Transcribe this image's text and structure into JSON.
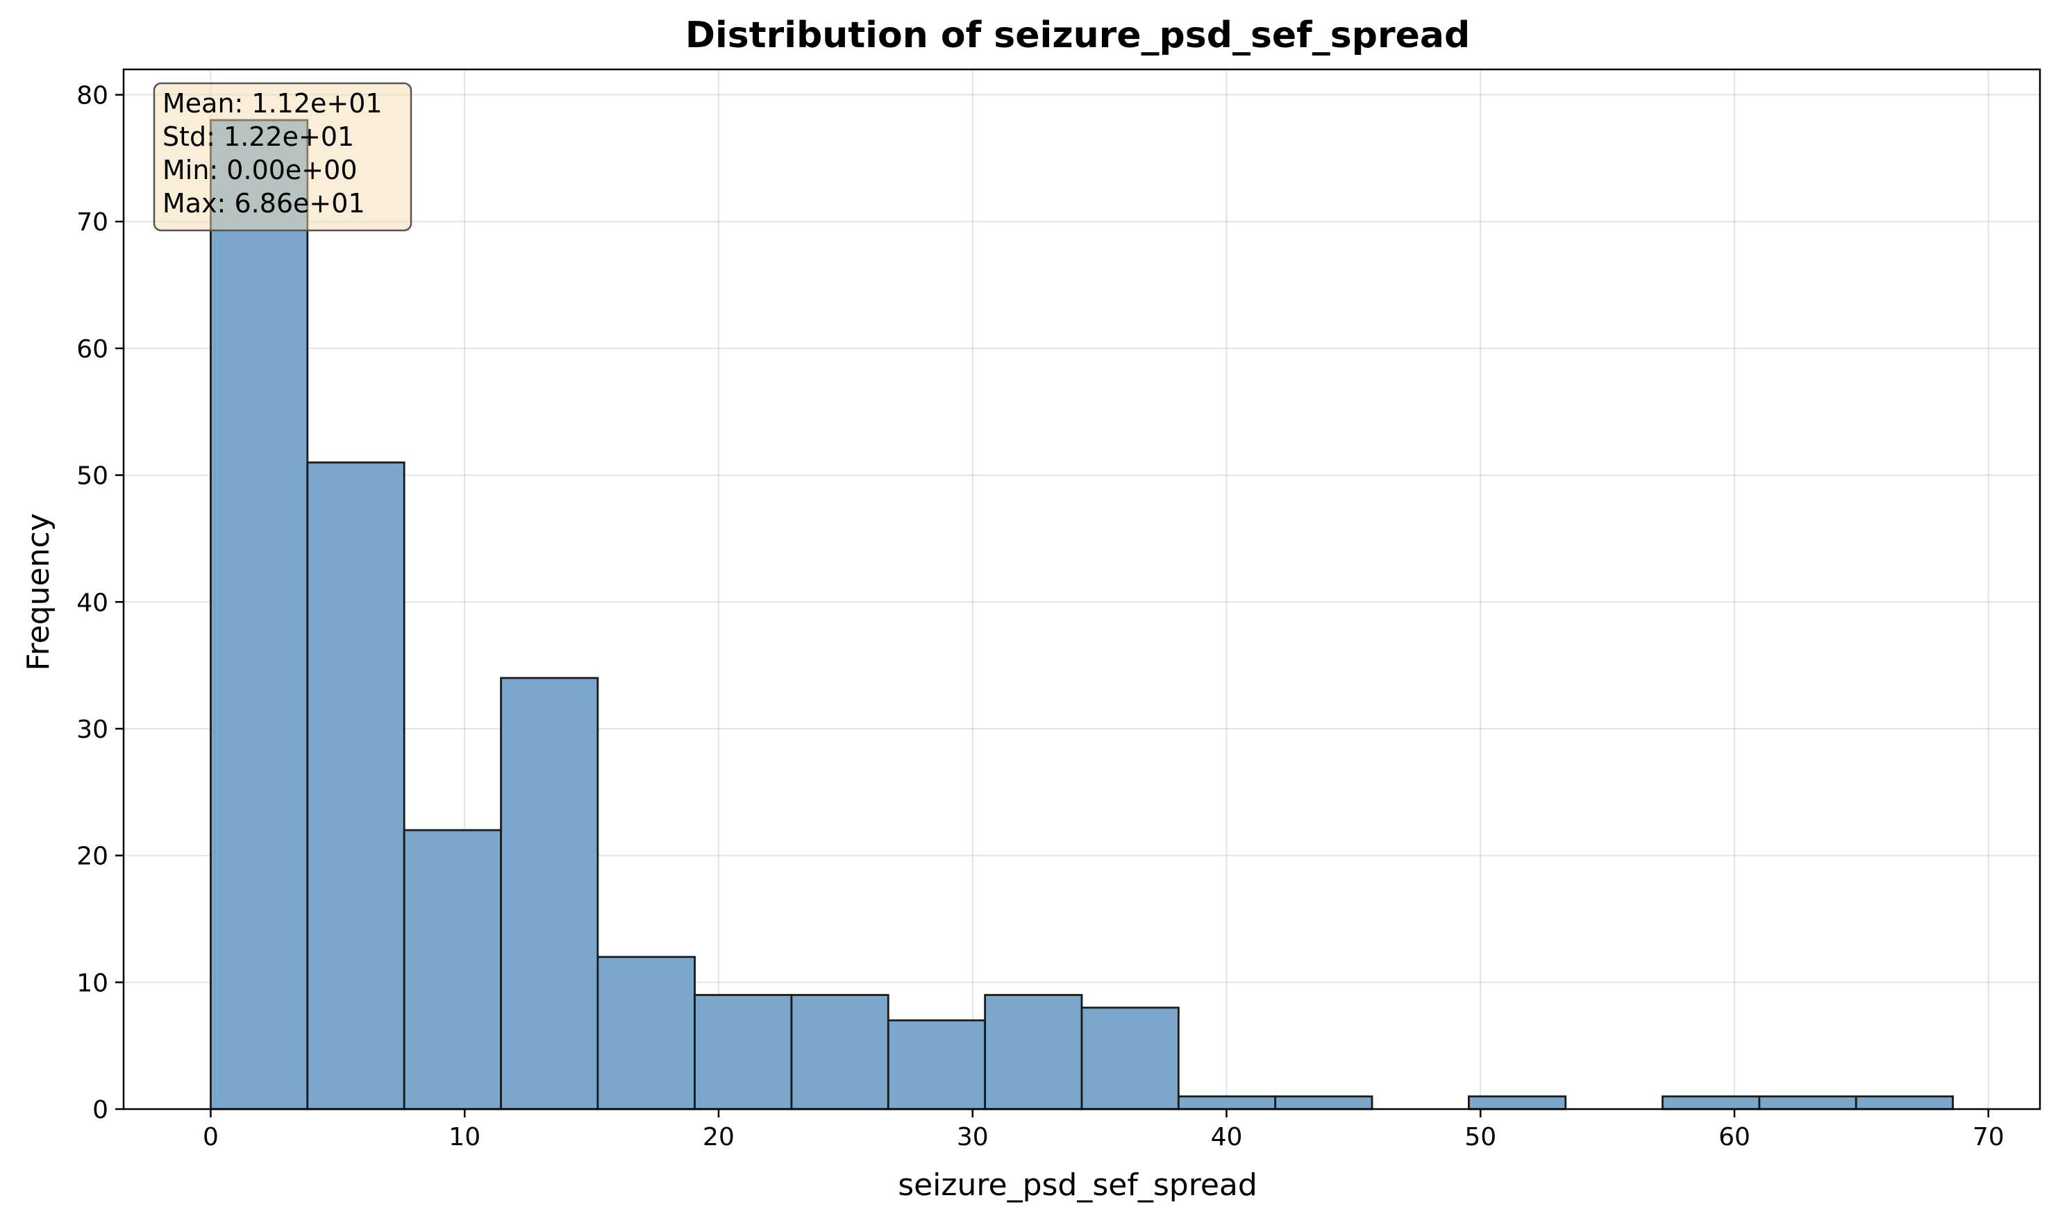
{
  "chart_data": {
    "type": "bar",
    "title": "Distribution of seizure_psd_sef_spread",
    "xlabel": "seizure_psd_sef_spread",
    "ylabel": "Frequency",
    "xlim": [
      -3.43,
      72.03
    ],
    "ylim": [
      0,
      82
    ],
    "xticks": [
      0,
      10,
      20,
      30,
      40,
      50,
      60,
      70
    ],
    "yticks": [
      0,
      10,
      20,
      30,
      40,
      50,
      60,
      70,
      80
    ],
    "grid": true,
    "bin_edges": [
      0,
      3.81,
      7.62,
      11.43,
      15.24,
      19.06,
      22.87,
      26.68,
      30.49,
      34.3,
      38.11,
      41.92,
      45.73,
      49.54,
      53.35,
      57.17,
      60.98,
      64.79,
      68.6
    ],
    "values": [
      78,
      51,
      22,
      34,
      12,
      9,
      9,
      7,
      9,
      8,
      1,
      1,
      0,
      1,
      0,
      1,
      1,
      1
    ],
    "bar_color": "#7ba7cc",
    "edge_color": "#1a1a1a",
    "stats_box": {
      "position": "top-left",
      "lines": [
        "Mean: 1.12e+01",
        "Std: 1.22e+01",
        "Min: 0.00e+00",
        "Max: 6.86e+01"
      ],
      "background": "#f5deb3"
    }
  }
}
